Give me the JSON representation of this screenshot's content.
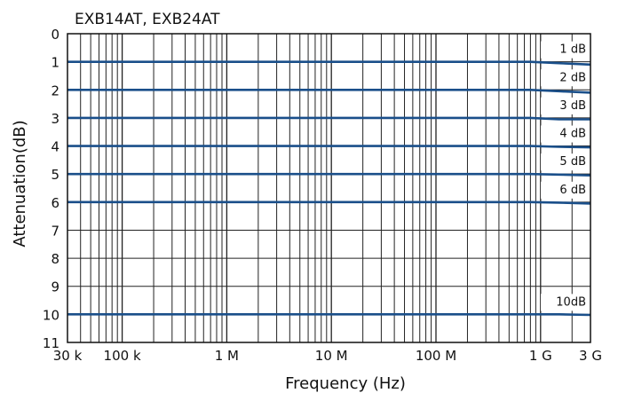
{
  "chart_data": {
    "type": "line",
    "title": "EXB14AT, EXB24AT",
    "xlabel": "Frequency (Hz)",
    "ylabel": "Attenuation(dB)",
    "x_scale": "log",
    "xlim": [
      30000,
      3000000000
    ],
    "ylim": [
      0,
      11
    ],
    "y_inverted": true,
    "grid": true,
    "x_ticks": [
      {
        "value": 30000,
        "label": "30 k"
      },
      {
        "value": 100000,
        "label": "100 k"
      },
      {
        "value": 1000000,
        "label": "1 M"
      },
      {
        "value": 10000000,
        "label": "10 M"
      },
      {
        "value": 100000000,
        "label": "100 M"
      },
      {
        "value": 1000000000,
        "label": "1 G"
      },
      {
        "value": 3000000000,
        "label": "3 G"
      }
    ],
    "y_ticks": [
      {
        "value": 0,
        "label": "0"
      },
      {
        "value": 1,
        "label": "1"
      },
      {
        "value": 2,
        "label": "2"
      },
      {
        "value": 3,
        "label": "3"
      },
      {
        "value": 4,
        "label": "4"
      },
      {
        "value": 5,
        "label": "5"
      },
      {
        "value": 6,
        "label": "6"
      },
      {
        "value": 7,
        "label": "7"
      },
      {
        "value": 8,
        "label": "8"
      },
      {
        "value": 9,
        "label": "9"
      },
      {
        "value": 10,
        "label": "10"
      },
      {
        "value": 11,
        "label": "11"
      }
    ],
    "line_color": "#1a4f8a",
    "series": [
      {
        "name": "1 dB",
        "x": [
          30000,
          800000000,
          1500000000,
          3000000000
        ],
        "y": [
          1.0,
          1.0,
          1.05,
          1.1
        ]
      },
      {
        "name": "2 dB",
        "x": [
          30000,
          800000000,
          1500000000,
          3000000000
        ],
        "y": [
          2.0,
          2.0,
          2.05,
          2.1
        ]
      },
      {
        "name": "3 dB",
        "x": [
          30000,
          800000000,
          1500000000,
          3000000000
        ],
        "y": [
          3.0,
          3.0,
          3.05,
          3.05
        ]
      },
      {
        "name": "4 dB",
        "x": [
          30000,
          800000000,
          1500000000,
          3000000000
        ],
        "y": [
          4.0,
          4.0,
          4.03,
          4.05
        ]
      },
      {
        "name": "5 dB",
        "x": [
          30000,
          800000000,
          1500000000,
          3000000000
        ],
        "y": [
          5.0,
          5.0,
          5.02,
          5.05
        ]
      },
      {
        "name": "6 dB",
        "x": [
          30000,
          800000000,
          1500000000,
          3000000000
        ],
        "y": [
          6.0,
          6.0,
          6.02,
          6.05
        ]
      },
      {
        "name": "10dB",
        "x": [
          30000,
          800000000,
          1500000000,
          3000000000
        ],
        "y": [
          10.0,
          10.0,
          10.0,
          10.02
        ]
      }
    ]
  }
}
